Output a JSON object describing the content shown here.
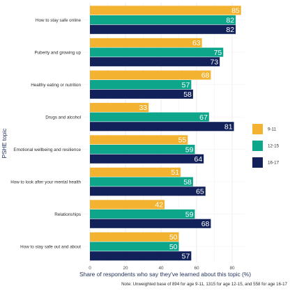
{
  "chart_data": {
    "type": "bar",
    "orientation": "horizontal",
    "categories": [
      "How to stay safe online",
      "Puberty and growing up",
      "Healthy eating or nutrition",
      "Drugs and alcohol",
      "Emotional wellbeing and resilience",
      "How to look after your mental health",
      "Relationships",
      "How to stay safe out and about"
    ],
    "series": [
      {
        "name": "9-11",
        "color": "#f3b230",
        "values": [
          85,
          63,
          68,
          33,
          55,
          51,
          42,
          50
        ]
      },
      {
        "name": "12-15",
        "color": "#0ea68b",
        "values": [
          82,
          75,
          57,
          67,
          59,
          58,
          59,
          50
        ]
      },
      {
        "name": "16-17",
        "color": "#12215a",
        "values": [
          82,
          73,
          58,
          81,
          64,
          65,
          68,
          57
        ]
      }
    ],
    "xlabel": "Share of respondents who say they've learned about this topic (%)",
    "ylabel": "PSHE topic",
    "xlim": [
      0,
      85
    ],
    "xticks": [
      0,
      20,
      40,
      60,
      80
    ],
    "grid": true,
    "legend_position": "right",
    "note": "Note: Unweighted base of 894 for age 9-11, 1315 for age 12-15, and 558 for age 16-17"
  }
}
